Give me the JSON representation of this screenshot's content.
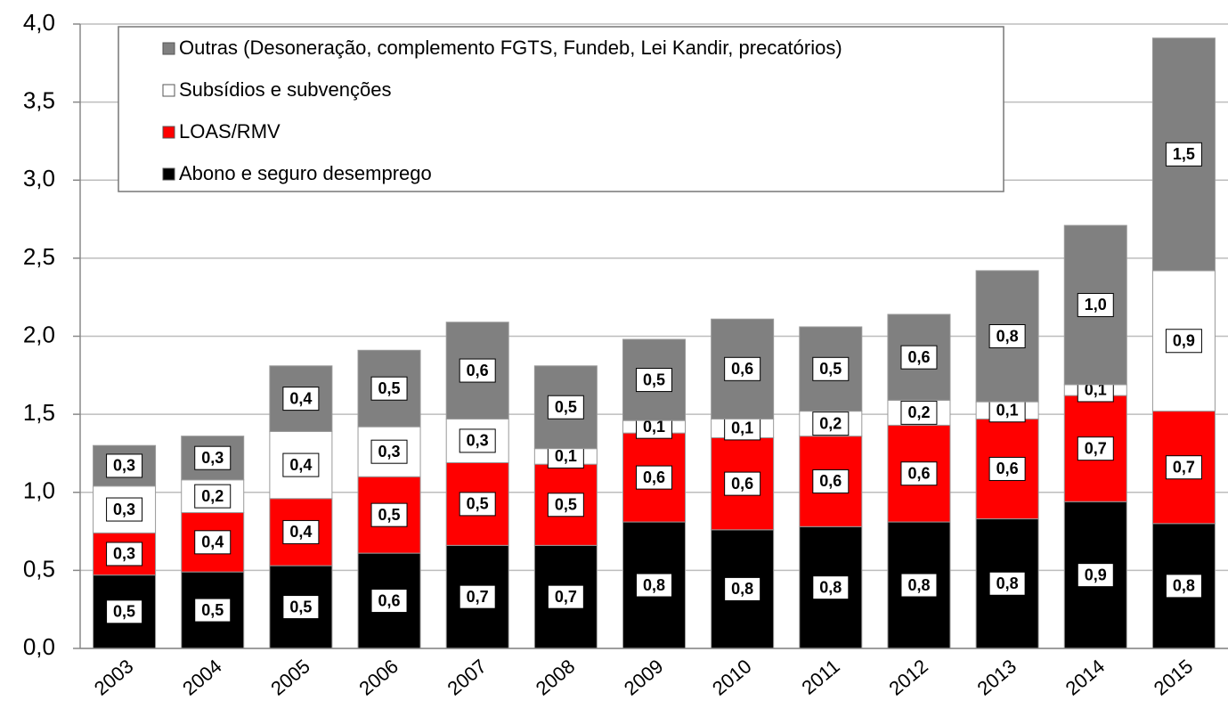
{
  "chart_data": {
    "type": "stacked_bar",
    "categories": [
      "2003",
      "2004",
      "2005",
      "2006",
      "2007",
      "2008",
      "2009",
      "2010",
      "2011",
      "2012",
      "2013",
      "2014",
      "2015"
    ],
    "series": [
      {
        "name": "Abono e seguro desemprego",
        "color": "#000000",
        "values": [
          0.47,
          0.49,
          0.53,
          0.61,
          0.66,
          0.66,
          0.81,
          0.76,
          0.78,
          0.81,
          0.83,
          0.94,
          0.8
        ],
        "value_labels": [
          "0,5",
          "0,5",
          "0,5",
          "0,6",
          "0,7",
          "0,7",
          "0,8",
          "0,8",
          "0,8",
          "0,8",
          "0,8",
          "0,9",
          "0,8"
        ]
      },
      {
        "name": "LOAS/RMV",
        "color": "#ff0000",
        "values": [
          0.27,
          0.38,
          0.43,
          0.49,
          0.53,
          0.52,
          0.57,
          0.59,
          0.58,
          0.62,
          0.64,
          0.68,
          0.72
        ],
        "value_labels": [
          "0,3",
          "0,4",
          "0,4",
          "0,5",
          "0,5",
          "0,5",
          "0,6",
          "0,6",
          "0,6",
          "0,6",
          "0,6",
          "0,7",
          "0,7"
        ]
      },
      {
        "name": "Subsídios e subvenções",
        "color": "#ffffff",
        "values": [
          0.3,
          0.21,
          0.43,
          0.32,
          0.28,
          0.1,
          0.08,
          0.12,
          0.16,
          0.16,
          0.11,
          0.07,
          0.9
        ],
        "value_labels": [
          "0,3",
          "0,2",
          "0,4",
          "0,3",
          "0,3",
          "0,1",
          "0,1",
          "0,1",
          "0,2",
          "0,2",
          "0,1",
          "0,1",
          "0,9"
        ]
      },
      {
        "name": "Outras (Desoneração, complemento FGTS, Fundeb, Lei Kandir, precatórios)",
        "color": "#808080",
        "values": [
          0.26,
          0.28,
          0.42,
          0.49,
          0.62,
          0.53,
          0.52,
          0.64,
          0.54,
          0.55,
          0.84,
          1.02,
          1.49
        ],
        "value_labels": [
          "0,3",
          "0,3",
          "0,4",
          "0,5",
          "0,6",
          "0,5",
          "0,5",
          "0,6",
          "0,5",
          "0,6",
          "0,8",
          "1,0",
          "1,5"
        ]
      }
    ],
    "ylim": [
      0,
      4
    ],
    "yticks": [
      {
        "value": 0,
        "label": "0,0"
      },
      {
        "value": 0.5,
        "label": "0,5"
      },
      {
        "value": 1,
        "label": "1,0"
      },
      {
        "value": 1.5,
        "label": "1,5"
      },
      {
        "value": 2,
        "label": "2,0"
      },
      {
        "value": 2.5,
        "label": "2,5"
      },
      {
        "value": 3,
        "label": "3,0"
      },
      {
        "value": 3.5,
        "label": "3,5"
      },
      {
        "value": 4,
        "label": "4,0"
      }
    ],
    "grid": true,
    "legend": "top-left"
  }
}
